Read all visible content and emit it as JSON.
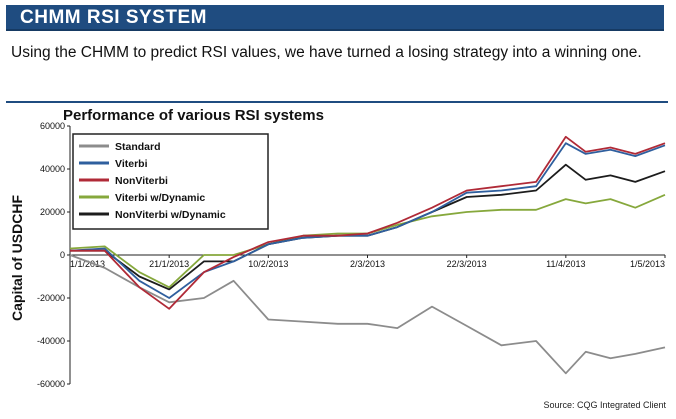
{
  "header": {
    "title": "CHMM RSI SYSTEM",
    "subtitle": "Using the CHMM to predict RSI values, we have turned a losing strategy into a winning one."
  },
  "source_note": "Source: CQG Integrated Client",
  "colors": {
    "banner": "#1f4c80",
    "Standard": "#8c8c8c",
    "Viterbi": "#2f5f9e",
    "NonViterbi": "#b02a37",
    "Viterbi w/Dynamic": "#86a83c",
    "NonViterbi w/Dynamic": "#1c1c1c"
  },
  "chart_data": {
    "type": "line",
    "title": "Performance of various RSI systems",
    "ylabel": "Capital of USDCHF",
    "xlabel": "",
    "ylim": [
      -60000,
      60000
    ],
    "yticks": [
      -60000,
      -40000,
      -20000,
      0,
      20000,
      40000,
      60000
    ],
    "xticks": [
      "1/1/2013",
      "21/1/2013",
      "10/2/2013",
      "2/3/2013",
      "22/3/2013",
      "11/4/2013",
      "1/5/2013"
    ],
    "x_dates": [
      "2013-01-01",
      "2013-01-08",
      "2013-01-15",
      "2013-01-21",
      "2013-01-28",
      "2013-02-03",
      "2013-02-10",
      "2013-02-17",
      "2013-02-24",
      "2013-03-02",
      "2013-03-08",
      "2013-03-15",
      "2013-03-22",
      "2013-03-29",
      "2013-04-05",
      "2013-04-11",
      "2013-04-15",
      "2013-04-20",
      "2013-04-25",
      "2013-05-01"
    ],
    "grid": false,
    "legend": "top-left",
    "series": [
      {
        "name": "Standard",
        "values": [
          0,
          -6000,
          -15000,
          -22000,
          -20000,
          -12000,
          -30000,
          -31000,
          -32000,
          -32000,
          -34000,
          -24000,
          -33000,
          -42000,
          -40000,
          -55000,
          -45000,
          -48000,
          -46000,
          -43000
        ]
      },
      {
        "name": "Viterbi",
        "values": [
          2000,
          3000,
          -12000,
          -20000,
          -8000,
          -3000,
          5000,
          8000,
          9000,
          9000,
          13000,
          20000,
          29000,
          30000,
          32000,
          52000,
          47000,
          49000,
          46000,
          51000
        ]
      },
      {
        "name": "NonViterbi",
        "values": [
          2000,
          2000,
          -15000,
          -25000,
          -8000,
          -1000,
          6000,
          9000,
          9000,
          10000,
          15000,
          22000,
          30000,
          32000,
          34000,
          55000,
          48000,
          50000,
          47000,
          52000
        ]
      },
      {
        "name": "Viterbi w/Dynamic",
        "values": [
          3000,
          4000,
          -8000,
          -15000,
          0,
          0,
          5000,
          9000,
          10000,
          10000,
          14000,
          18000,
          20000,
          21000,
          21000,
          26000,
          24000,
          26000,
          22000,
          28000
        ]
      },
      {
        "name": "NonViterbi w/Dynamic",
        "values": [
          2000,
          2000,
          -10000,
          -16000,
          -3000,
          -3000,
          5000,
          8000,
          9000,
          9000,
          13000,
          20000,
          27000,
          28000,
          30000,
          42000,
          35000,
          37000,
          34000,
          39000
        ]
      }
    ]
  }
}
